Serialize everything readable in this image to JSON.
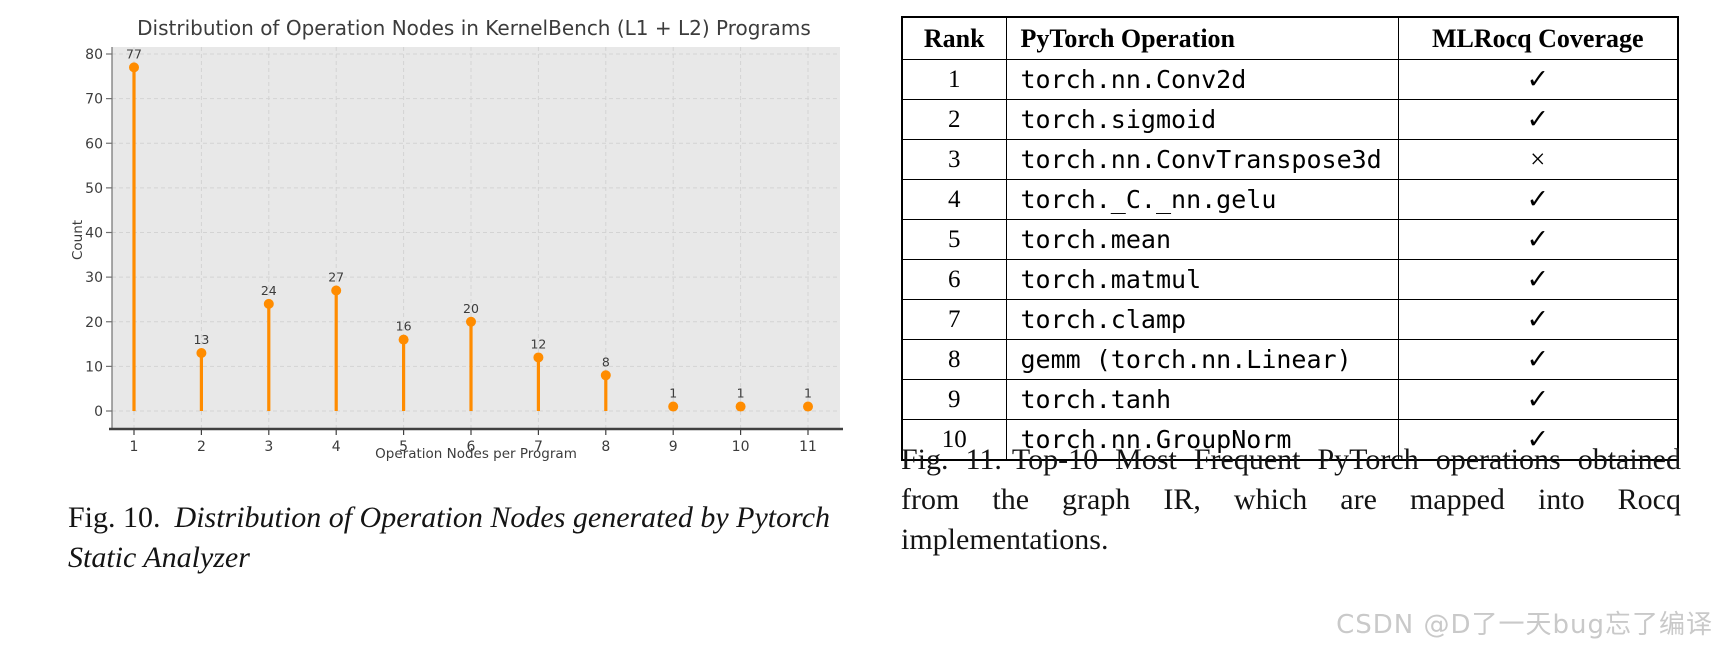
{
  "chart_data": {
    "type": "stem",
    "x": [
      1,
      2,
      3,
      4,
      5,
      6,
      7,
      8,
      9,
      10,
      11
    ],
    "values": [
      77,
      13,
      24,
      27,
      16,
      20,
      12,
      8,
      1,
      1,
      1
    ],
    "title": "Distribution of Operation Nodes in KernelBench (L1 + L2) Programs",
    "xlabel": "Operation Nodes per Program",
    "ylabel": "Count",
    "ylim": [
      0,
      82
    ],
    "yticks": [
      0,
      10,
      20,
      30,
      40,
      50,
      60,
      70,
      80
    ],
    "grid": true,
    "data_labels": true,
    "legend": "none",
    "stem_color": "#FF8C00",
    "plot_bg": "#E8E8E8",
    "grid_color": "#D3D3D3"
  },
  "caption_left": {
    "label": "Fig. 10.",
    "text": "Distribution of Operation Nodes generated by Pytorch Static Analyzer"
  },
  "caption_right": {
    "label": "Fig. 11.",
    "text": "Top-10 Most Frequent PyTorch operations obtained from the graph IR, which are mapped into Rocq implementations."
  },
  "table": {
    "columns": [
      "Rank",
      "PyTorch Operation",
      "MLRocq Coverage"
    ],
    "rows": [
      {
        "rank": "1",
        "operation": "torch.nn.Conv2d",
        "coverage": "✓"
      },
      {
        "rank": "2",
        "operation": "torch.sigmoid",
        "coverage": "✓"
      },
      {
        "rank": "3",
        "operation": "torch.nn.ConvTranspose3d",
        "coverage": "×"
      },
      {
        "rank": "4",
        "operation": "torch._C._nn.gelu",
        "coverage": "✓"
      },
      {
        "rank": "5",
        "operation": "torch.mean",
        "coverage": "✓"
      },
      {
        "rank": "6",
        "operation": "torch.matmul",
        "coverage": "✓"
      },
      {
        "rank": "7",
        "operation": "torch.clamp",
        "coverage": "✓"
      },
      {
        "rank": "8",
        "operation": "gemm (torch.nn.Linear)",
        "coverage": "✓"
      },
      {
        "rank": "9",
        "operation": "torch.tanh",
        "coverage": "✓"
      },
      {
        "rank": "10",
        "operation": "torch.nn.GroupNorm",
        "coverage": "✓"
      }
    ]
  },
  "watermark": "CSDN @D了一天bug忘了编译"
}
